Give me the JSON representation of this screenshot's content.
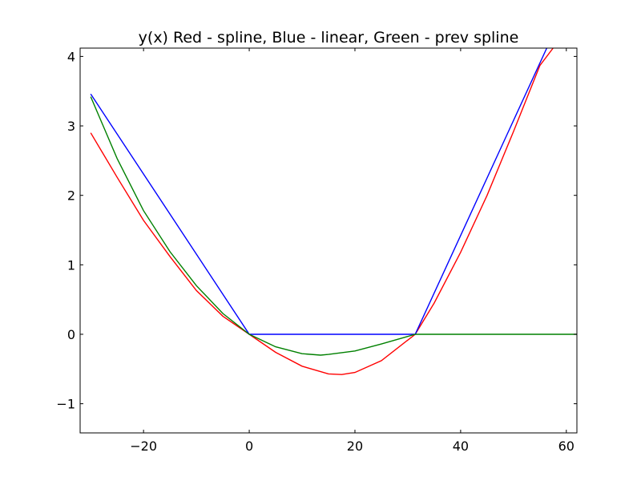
{
  "chart_data": {
    "type": "line",
    "title": "y(x) Red - spline, Blue - linear, Green - prev spline",
    "xlabel": "",
    "ylabel": "",
    "xlim": [
      -32,
      62
    ],
    "ylim": [
      -1.42,
      4.12
    ],
    "x_ticks": [
      -20,
      0,
      20,
      40,
      60
    ],
    "x_tick_labels": [
      "−20",
      "0",
      "20",
      "40",
      "60"
    ],
    "y_ticks": [
      -1,
      0,
      1,
      2,
      3,
      4
    ],
    "y_tick_labels": [
      "−1",
      "0",
      "1",
      "2",
      "3",
      "4"
    ],
    "grid": false,
    "series": [
      {
        "color": "#ff0000",
        "x": [
          -30,
          -25,
          -20,
          -15,
          -10,
          -5,
          0,
          5,
          10,
          15,
          17.5,
          20,
          25,
          31.4,
          35,
          40,
          45,
          50,
          55,
          57.5
        ],
        "y": [
          2.9,
          2.26,
          1.64,
          1.12,
          0.63,
          0.26,
          0.0,
          -0.26,
          -0.46,
          -0.57,
          -0.58,
          -0.55,
          -0.38,
          0.0,
          0.45,
          1.18,
          2.0,
          2.92,
          3.87,
          4.12
        ]
      },
      {
        "color": "#0000ff",
        "x": [
          -30,
          0,
          31.4,
          56.3
        ],
        "y": [
          3.46,
          0.0,
          0.0,
          4.12
        ]
      },
      {
        "color": "#008000",
        "x": [
          -30,
          -25,
          -20,
          -15,
          -10,
          -5,
          0,
          5,
          10,
          13.5,
          15,
          20,
          25,
          31.4,
          40,
          50,
          62
        ],
        "y": [
          3.42,
          2.53,
          1.78,
          1.19,
          0.7,
          0.3,
          0.0,
          -0.18,
          -0.28,
          -0.3,
          -0.29,
          -0.24,
          -0.14,
          0.0,
          0.0,
          0.0,
          0.0
        ]
      }
    ]
  }
}
